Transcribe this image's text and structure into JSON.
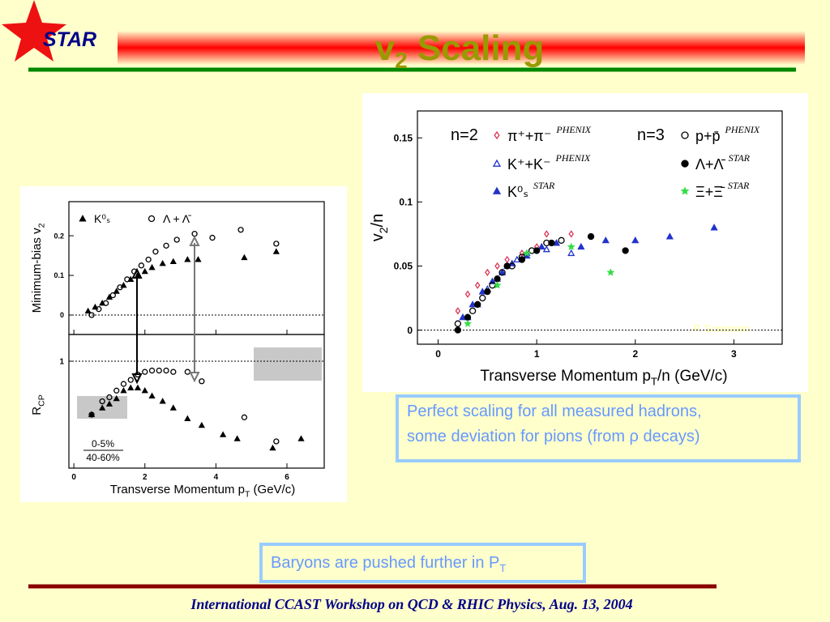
{
  "header": {
    "logo": "STAR",
    "title": "v",
    "title_sub": "2",
    "title_rest": " Scaling"
  },
  "left_figure": {
    "x_label": "Transverse Momentum p",
    "x_label_sub": "T",
    "x_label_rest": " (GeV/c)",
    "xlim": [
      -0.14,
      7.05
    ],
    "xticks": [
      0,
      2,
      4,
      6
    ],
    "top_panel": {
      "y_label": "Minimum-bias v",
      "y_label_sub": "2",
      "ylim": [
        -0.049,
        0.286
      ],
      "yticks": [
        0,
        0.1,
        0.2
      ],
      "series": [
        {
          "name": "K⁰ₛ",
          "marker": "triangle",
          "filled": true,
          "color": "#000000",
          "x": [
            0.4,
            0.6,
            0.8,
            1.0,
            1.2,
            1.4,
            1.6,
            1.8,
            2.0,
            2.2,
            2.5,
            2.8,
            3.2,
            3.5,
            4.8,
            5.7
          ],
          "values": [
            0.01,
            0.02,
            0.03,
            0.045,
            0.06,
            0.075,
            0.09,
            0.1,
            0.11,
            0.12,
            0.13,
            0.135,
            0.14,
            0.14,
            0.145,
            0.16
          ]
        },
        {
          "name": "Λ + Λ̄",
          "marker": "circle",
          "filled": false,
          "color": "#000000",
          "x": [
            0.5,
            0.7,
            0.9,
            1.1,
            1.3,
            1.5,
            1.7,
            1.9,
            2.1,
            2.3,
            2.6,
            2.9,
            3.4,
            3.9,
            4.7,
            5.7
          ],
          "values": [
            0.0,
            0.015,
            0.03,
            0.05,
            0.07,
            0.09,
            0.11,
            0.125,
            0.14,
            0.16,
            0.175,
            0.19,
            0.205,
            0.195,
            0.215,
            0.18
          ]
        }
      ]
    },
    "bottom_panel": {
      "y_label": "R",
      "y_label_sub": "CP",
      "ylim": [
        0.2,
        1.2
      ],
      "yticks": [
        1
      ],
      "legend_numerator": "0-5%",
      "legend_denominator": "40-60%",
      "series": [
        {
          "marker": "triangle",
          "filled": true,
          "color": "#000000",
          "x": [
            0.5,
            0.8,
            1.0,
            1.2,
            1.4,
            1.6,
            1.8,
            2.0,
            2.2,
            2.5,
            2.8,
            3.2,
            3.6,
            4.2,
            4.6,
            5.6,
            6.4
          ],
          "values": [
            0.6,
            0.65,
            0.68,
            0.72,
            0.78,
            0.8,
            0.8,
            0.78,
            0.74,
            0.7,
            0.65,
            0.57,
            0.52,
            0.45,
            0.42,
            0.35,
            0.42
          ]
        },
        {
          "marker": "circle",
          "filled": false,
          "color": "#000000",
          "x": [
            0.5,
            0.8,
            1.0,
            1.2,
            1.4,
            1.6,
            1.8,
            2.0,
            2.2,
            2.4,
            2.6,
            2.8,
            3.2,
            3.6,
            4.8,
            5.7
          ],
          "values": [
            0.6,
            0.7,
            0.73,
            0.78,
            0.83,
            0.86,
            0.9,
            0.92,
            0.93,
            0.93,
            0.93,
            0.92,
            0.92,
            0.85,
            0.58,
            0.4
          ]
        }
      ]
    }
  },
  "right_figure": {
    "y_label": "v",
    "y_label_sub": "2",
    "y_label_rest": "/n",
    "x_label": "Transverse Momentum p",
    "x_label_sub": "T",
    "x_label_rest": "/n (GeV/c)",
    "xlim": [
      -0.21,
      3.49
    ],
    "xticks": [
      0,
      1,
      2,
      3
    ],
    "ylim": [
      -0.011,
      0.171
    ],
    "yticks": [
      0,
      0.05,
      0.1,
      0.15
    ],
    "watermark": "P. Sorensen",
    "groups": [
      {
        "label": "n=2",
        "series": [
          {
            "name": "π⁺+π⁻",
            "source": "PHENIX",
            "marker": "diamond",
            "filled": false,
            "color": "#dd3355",
            "x": [
              0.2,
              0.3,
              0.4,
              0.5,
              0.6,
              0.7,
              0.85,
              1.0,
              1.1,
              1.35
            ],
            "values": [
              0.015,
              0.028,
              0.035,
              0.045,
              0.05,
              0.055,
              0.06,
              0.065,
              0.075,
              0.075
            ]
          },
          {
            "name": "K⁺+K⁻",
            "source": "PHENIX",
            "marker": "triangle",
            "filled": false,
            "color": "#2233cc",
            "x": [
              0.3,
              0.4,
              0.5,
              0.6,
              0.7,
              0.8,
              0.9,
              1.1,
              1.35
            ],
            "values": [
              0.01,
              0.02,
              0.032,
              0.04,
              0.05,
              0.055,
              0.06,
              0.063,
              0.06
            ]
          },
          {
            "name": "K⁰ₛ",
            "source": "STAR",
            "marker": "triangle",
            "filled": true,
            "color": "#2233cc",
            "x": [
              0.25,
              0.35,
              0.45,
              0.55,
              0.65,
              0.75,
              0.9,
              1.05,
              1.2,
              1.45,
              1.7,
              2.0,
              2.35,
              2.8
            ],
            "values": [
              0.01,
              0.02,
              0.03,
              0.038,
              0.045,
              0.052,
              0.058,
              0.065,
              0.068,
              0.065,
              0.07,
              0.07,
              0.073,
              0.08
            ]
          }
        ]
      },
      {
        "label": "n=3",
        "series": [
          {
            "name": "p+p̄",
            "source": "PHENIX",
            "marker": "circle",
            "filled": false,
            "color": "#000000",
            "x": [
              0.2,
              0.35,
              0.45,
              0.55,
              0.65,
              0.75,
              0.85,
              0.95,
              1.1,
              1.25
            ],
            "values": [
              0.005,
              0.015,
              0.025,
              0.035,
              0.045,
              0.05,
              0.057,
              0.062,
              0.068,
              0.07
            ]
          },
          {
            "name": "Λ+Λ̄",
            "source": "STAR",
            "marker": "circle",
            "filled": true,
            "color": "#000000",
            "x": [
              0.2,
              0.3,
              0.4,
              0.5,
              0.6,
              0.7,
              0.85,
              1.0,
              1.15,
              1.55,
              1.9
            ],
            "values": [
              0.0,
              0.01,
              0.02,
              0.03,
              0.04,
              0.05,
              0.055,
              0.062,
              0.068,
              0.073,
              0.062
            ]
          },
          {
            "name": "Ξ+Ξ̄",
            "source": "STAR",
            "marker": "star",
            "filled": true,
            "color": "#33dd44",
            "x": [
              0.3,
              0.6,
              0.9,
              1.35,
              1.75
            ],
            "values": [
              0.005,
              0.035,
              0.06,
              0.065,
              0.045
            ]
          }
        ]
      }
    ]
  },
  "notes": {
    "scaling": [
      "Perfect scaling for all measured hadrons,",
      "some deviation for pions (from ρ decays)"
    ],
    "baryons": "Baryons are pushed further in P",
    "baryons_sub": "T"
  },
  "footer": "International CCAST Workshop on QCD & RHIC Physics, Aug. 13, 2004"
}
